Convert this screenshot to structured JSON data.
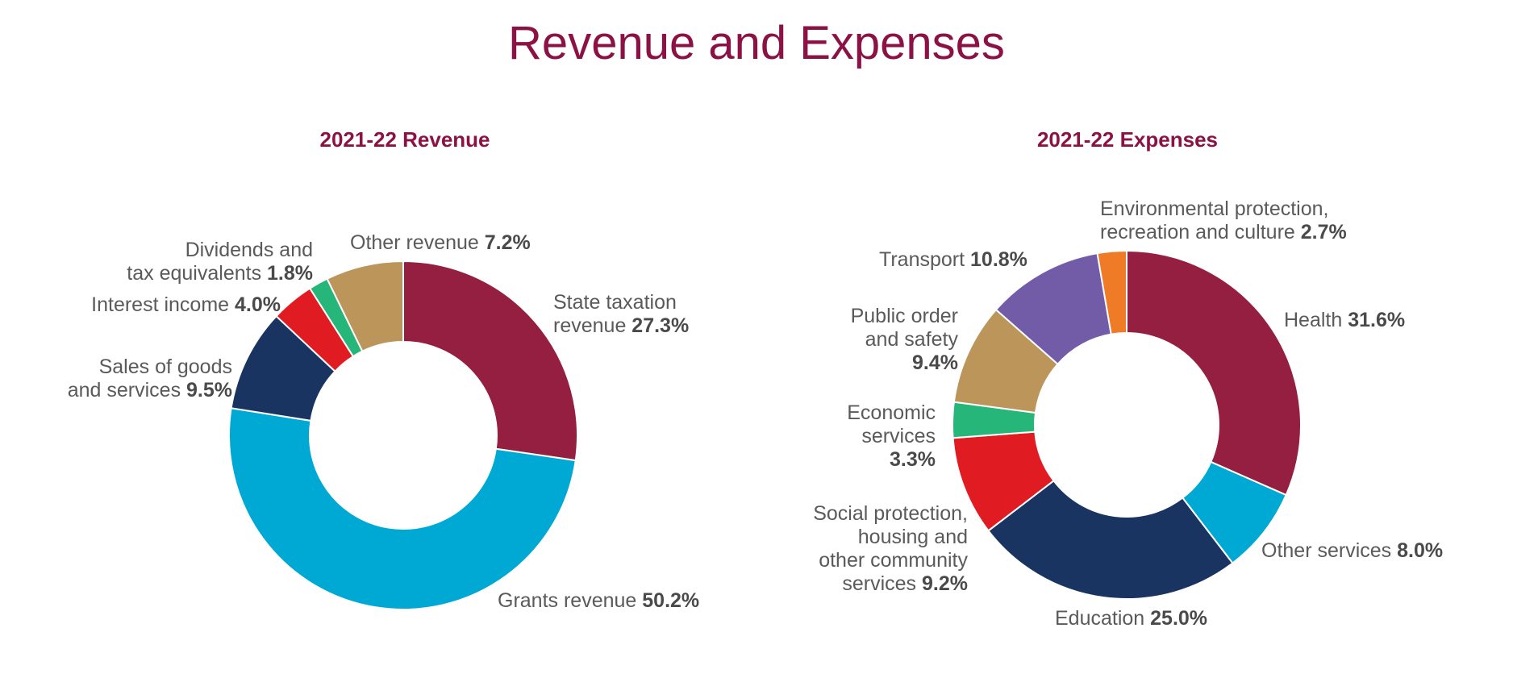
{
  "page": {
    "title": "Revenue and Expenses"
  },
  "chart_data": [
    {
      "type": "pie",
      "title": "2021-22 Revenue",
      "slices": [
        {
          "label": "State taxation revenue",
          "value": 27.3,
          "display": "27.3%",
          "color": "#951f41"
        },
        {
          "label": "Grants revenue",
          "value": 50.2,
          "display": "50.2%",
          "color": "#00a9d4"
        },
        {
          "label": "Sales of goods and services",
          "value": 9.5,
          "display": "9.5%",
          "color": "#1a3462"
        },
        {
          "label": "Interest income",
          "value": 4.0,
          "display": "4.0%",
          "color": "#e11b22"
        },
        {
          "label": "Dividends and tax equivalents",
          "value": 1.8,
          "display": "1.8%",
          "color": "#27b67a"
        },
        {
          "label": "Other revenue",
          "value": 7.2,
          "display": "7.2%",
          "color": "#bb9559"
        }
      ]
    },
    {
      "type": "pie",
      "title": "2021-22 Expenses",
      "slices": [
        {
          "label": "Health",
          "value": 31.6,
          "display": "31.6%",
          "color": "#951f41"
        },
        {
          "label": "Other services",
          "value": 8.0,
          "display": "8.0%",
          "color": "#00a9d4"
        },
        {
          "label": "Education",
          "value": 25.0,
          "display": "25.0%",
          "color": "#1a3462"
        },
        {
          "label": "Social protection, housing and other community services",
          "value": 9.2,
          "display": "9.2%",
          "color": "#e11b22"
        },
        {
          "label": "Economic services",
          "value": 3.3,
          "display": "3.3%",
          "color": "#27b67a"
        },
        {
          "label": "Public order and safety",
          "value": 9.4,
          "display": "9.4%",
          "color": "#bb9559"
        },
        {
          "label": "Transport",
          "value": 10.8,
          "display": "10.8%",
          "color": "#725ca8"
        },
        {
          "label": "Environmental protection, recreation and culture",
          "value": 2.7,
          "display": "2.7%",
          "color": "#ef7b26"
        }
      ]
    }
  ]
}
